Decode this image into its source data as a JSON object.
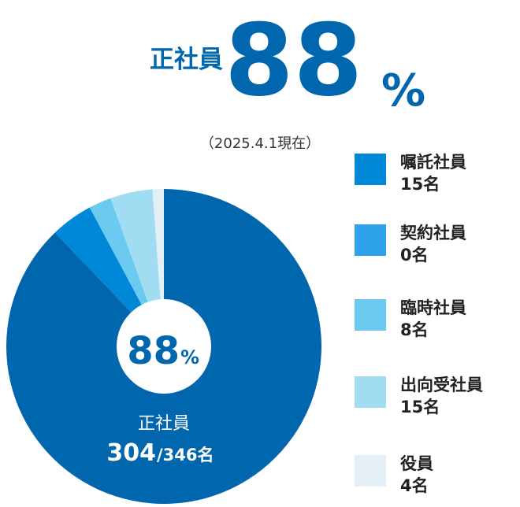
{
  "chart_data": {
    "type": "pie",
    "title": "正社員",
    "share": {
      "value": 88,
      "unit": "%"
    },
    "date_note": "（2025.4.1現在）",
    "categories": [
      "正社員",
      "嘱託社員",
      "契約社員",
      "臨時社員",
      "出向受社員",
      "役員"
    ],
    "values": [
      304,
      15,
      0,
      8,
      15,
      4
    ],
    "value_labels": [
      null,
      "15名",
      "0名",
      "8名",
      "15名",
      "4名"
    ],
    "total_label": "/346名",
    "colors": [
      "#0066ae",
      "#0088d8",
      "#2ea2ea",
      "#6ccaf0",
      "#a0dcf2",
      "#e4eef5"
    ]
  }
}
